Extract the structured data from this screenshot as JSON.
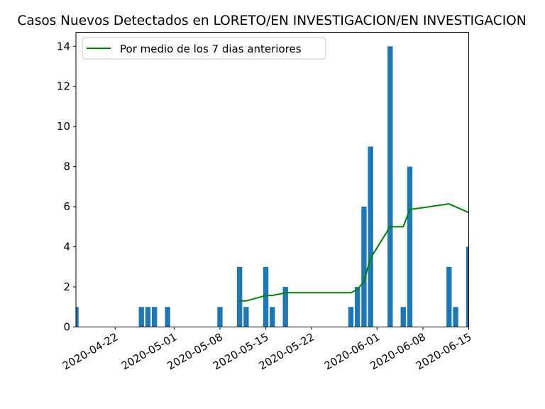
{
  "chart_data": {
    "type": "bar",
    "title": "Casos Nuevos Detectados en LORETO/EN INVESTIGACION/EN INVESTIGACION",
    "xlabel": "",
    "ylabel": "",
    "xlim": [
      "2020-04-16",
      "2020-06-15"
    ],
    "ylim": [
      0,
      14.7
    ],
    "x_ticks": [
      "2020-04-22",
      "2020-05-01",
      "2020-05-08",
      "2020-05-15",
      "2020-05-22",
      "2020-06-01",
      "2020-06-08",
      "2020-06-15"
    ],
    "y_ticks": [
      0,
      2,
      4,
      6,
      8,
      10,
      12,
      14
    ],
    "grid": false,
    "legend_position": "upper-left",
    "bar_color": "#1f77b4",
    "line_color": "#008000",
    "bars": {
      "x": [
        "2020-04-16",
        "2020-04-26",
        "2020-04-27",
        "2020-04-28",
        "2020-04-30",
        "2020-05-08",
        "2020-05-11",
        "2020-05-12",
        "2020-05-15",
        "2020-05-16",
        "2020-05-18",
        "2020-05-28",
        "2020-05-29",
        "2020-05-30",
        "2020-05-31",
        "2020-06-03",
        "2020-06-05",
        "2020-06-06",
        "2020-06-12",
        "2020-06-13",
        "2020-06-15"
      ],
      "values": [
        1,
        1,
        1,
        1,
        1,
        1,
        3,
        1,
        3,
        1,
        2,
        1,
        2,
        6,
        9,
        14,
        1,
        8,
        3,
        1,
        4
      ]
    },
    "series": [
      {
        "name": "Por medio de los 7 dias anteriores",
        "x": [
          "2020-05-11",
          "2020-05-12",
          "2020-05-15",
          "2020-05-16",
          "2020-05-18",
          "2020-05-28",
          "2020-05-29",
          "2020-05-30",
          "2020-05-31",
          "2020-06-03",
          "2020-06-05",
          "2020-06-06",
          "2020-06-12",
          "2020-06-15"
        ],
        "values": [
          1.3,
          1.3,
          1.57,
          1.57,
          1.71,
          1.71,
          1.86,
          2.29,
          3.43,
          5.0,
          5.0,
          5.86,
          6.14,
          5.71
        ]
      }
    ]
  }
}
